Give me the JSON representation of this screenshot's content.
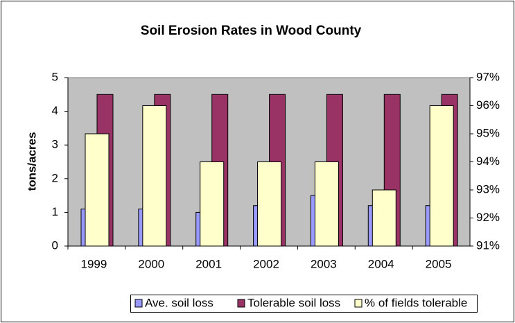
{
  "chart_data": {
    "type": "bar",
    "title": "Soil Erosion Rates in Wood County",
    "y_label": "tons/acres",
    "categories": [
      "1999",
      "2000",
      "2001",
      "2002",
      "2003",
      "2004",
      "2005"
    ],
    "series": [
      {
        "name": "Ave. soil loss",
        "color": "#9999ff",
        "values": [
          1.1,
          1.1,
          1.0,
          1.2,
          1.5,
          1.2,
          1.2
        ]
      },
      {
        "name": "Tolerable soil loss",
        "color": "#993366",
        "values": [
          4.5,
          4.5,
          4.5,
          4.5,
          4.5,
          4.5,
          4.5
        ]
      },
      {
        "name": "% of fields tolerable",
        "color": "#ffffcc",
        "axis": "y2",
        "values": [
          95,
          96,
          94,
          94,
          94,
          93,
          96
        ]
      }
    ],
    "ylim": [
      0,
      5
    ],
    "yticks": [
      0,
      1,
      2,
      3,
      4,
      5
    ],
    "y2lim": [
      91,
      97
    ],
    "y2ticks": [
      {
        "value": 91,
        "label": "91%"
      },
      {
        "value": 92,
        "label": "92%"
      },
      {
        "value": 93,
        "label": "93%"
      },
      {
        "value": 94,
        "label": "94%"
      },
      {
        "value": 95,
        "label": "95%"
      },
      {
        "value": 96,
        "label": "96%"
      },
      {
        "value": 97,
        "label": "97%"
      }
    ],
    "grid": false,
    "legend": "bottom"
  }
}
